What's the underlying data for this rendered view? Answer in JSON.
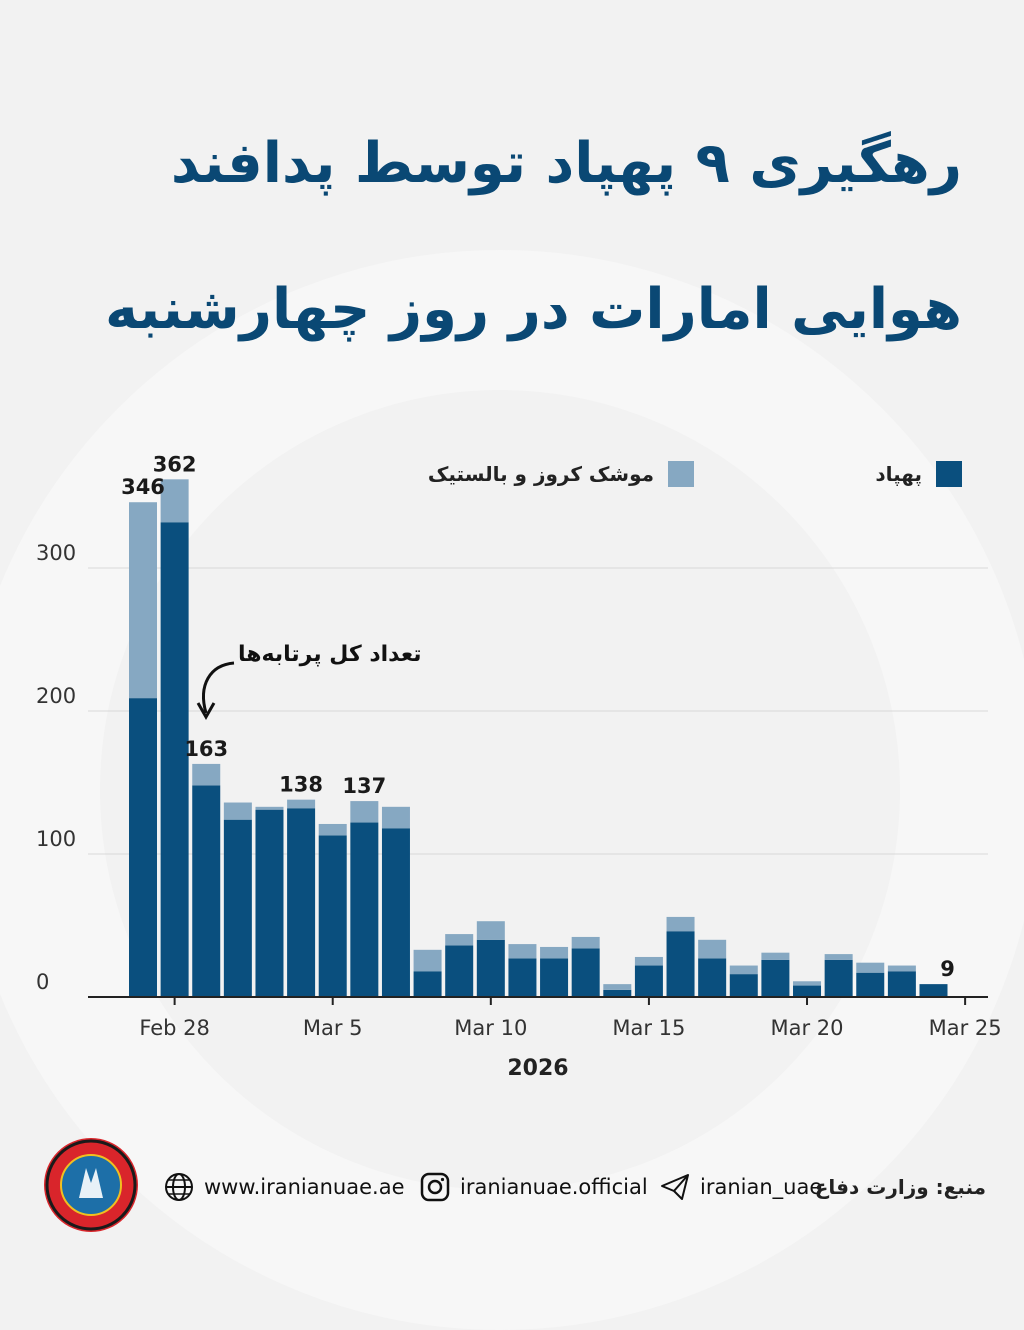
{
  "header": {
    "title_line1": "رهگیری ۹ پهپاد توسط پدافند",
    "title_line2": "هوایی امارات در روز چهارشنبه"
  },
  "colors": {
    "drone": "#0a4f7e",
    "missile": "#86a8c2",
    "title": "#0a4874"
  },
  "chart_data": {
    "type": "bar",
    "stacked": true,
    "x": [
      "2026-02-27",
      "2026-02-28",
      "2026-03-01",
      "2026-03-02",
      "2026-03-03",
      "2026-03-04",
      "2026-03-05",
      "2026-03-06",
      "2026-03-07",
      "2026-03-08",
      "2026-03-09",
      "2026-03-10",
      "2026-03-11",
      "2026-03-12",
      "2026-03-13",
      "2026-03-14",
      "2026-03-15",
      "2026-03-16",
      "2026-03-17",
      "2026-03-18",
      "2026-03-19",
      "2026-03-20",
      "2026-03-21",
      "2026-03-22",
      "2026-03-23",
      "2026-03-24",
      "2026-03-25"
    ],
    "series": [
      {
        "name": "پهپاد",
        "color_key": "drone",
        "values": [
          209,
          332,
          148,
          124,
          131,
          132,
          113,
          122,
          118,
          18,
          36,
          40,
          27,
          27,
          34,
          5,
          22,
          46,
          27,
          16,
          26,
          8,
          26,
          17,
          18,
          9,
          0
        ]
      },
      {
        "name": "موشک کروز و بالستیک",
        "color_key": "missile",
        "values": [
          137,
          30,
          15,
          12,
          2,
          6,
          8,
          15,
          15,
          15,
          8,
          13,
          10,
          8,
          8,
          4,
          6,
          10,
          13,
          6,
          5,
          3,
          4,
          7,
          4,
          0,
          0
        ]
      }
    ],
    "data_labels": [
      {
        "index": 0,
        "text": "346"
      },
      {
        "index": 1,
        "text": "362"
      },
      {
        "index": 2,
        "text": "163"
      },
      {
        "index": 5,
        "text": "138"
      },
      {
        "index": 7,
        "text": "137"
      },
      {
        "index": 25,
        "text": "9"
      }
    ],
    "x_ticks": [
      {
        "index": 1,
        "label": "Feb 28"
      },
      {
        "index": 6,
        "label": "Mar 5"
      },
      {
        "index": 11,
        "label": "Mar 10"
      },
      {
        "index": 16,
        "label": "Mar 15"
      },
      {
        "index": 21,
        "label": "Mar 20"
      },
      {
        "index": 26,
        "label": "Mar 25"
      }
    ],
    "y_ticks": [
      0,
      100,
      200,
      300
    ],
    "ylim": [
      0,
      370
    ],
    "xlabel": "2026",
    "ylabel": "",
    "grid": true,
    "legend": "top",
    "annotation": "تعداد کل پرتابه‌ها"
  },
  "footer": {
    "website": "www.iranianuae.ae",
    "instagram": "iranianuae.official",
    "telegram": "iranian_uae",
    "source": "منبع: وزارت دفاع",
    "logo_text": "IRANIAN UAE",
    "logo_subtext": "ایرانیان امارات"
  }
}
